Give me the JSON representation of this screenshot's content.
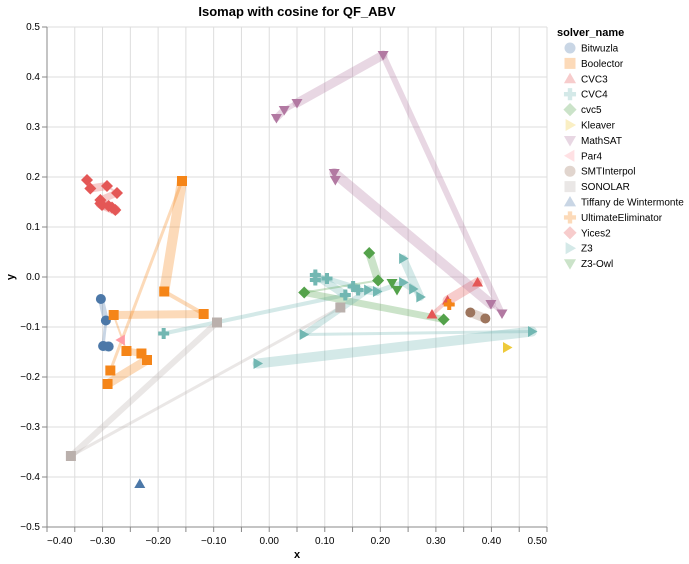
{
  "chart_data": {
    "type": "scatter",
    "title": "Isomap with cosine for QF_ABV",
    "xlabel": "x",
    "ylabel": "y",
    "xlim": [
      -0.4,
      0.5
    ],
    "ylim": [
      -0.5,
      0.5
    ],
    "grid": true,
    "x_ticks": [
      "−0.40",
      "−0.30",
      "−0.20",
      "−0.10",
      "0.00",
      "0.10",
      "0.20",
      "0.30",
      "0.40",
      "0.50"
    ],
    "x_tick_values": [
      -0.4,
      -0.3,
      -0.2,
      -0.1,
      0.0,
      0.1,
      0.2,
      0.3,
      0.4,
      0.5
    ],
    "y_ticks": [
      "0.5",
      "0.4",
      "0.3",
      "0.2",
      "0.1",
      "0.0",
      "−0.1",
      "−0.2",
      "−0.3",
      "−0.4",
      "−0.5"
    ],
    "y_tick_values": [
      0.5,
      0.4,
      0.3,
      0.2,
      0.1,
      0.0,
      -0.1,
      -0.2,
      -0.3,
      -0.4,
      -0.5
    ],
    "legend": {
      "title": "solver_name",
      "placement": "right"
    },
    "series": [
      {
        "name": "Bitwuzla",
        "shape": "circle",
        "color": "#4c78a8",
        "points": [
          [
            -0.303,
            -0.044
          ],
          [
            -0.294,
            -0.087
          ],
          [
            -0.299,
            -0.138
          ],
          [
            -0.289,
            -0.139
          ]
        ]
      },
      {
        "name": "Boolector",
        "shape": "square",
        "color": "#f58518",
        "points": [
          [
            -0.286,
            -0.187
          ],
          [
            -0.157,
            0.192
          ],
          [
            -0.189,
            -0.029
          ],
          [
            -0.118,
            -0.074
          ],
          [
            -0.28,
            -0.076
          ],
          [
            -0.257,
            -0.148
          ],
          [
            -0.23,
            -0.153
          ],
          [
            -0.22,
            -0.166
          ],
          [
            -0.291,
            -0.214
          ]
        ]
      },
      {
        "name": "CVC3",
        "shape": "triangle-up",
        "color": "#e45756",
        "points": [
          [
            0.375,
            -0.011
          ],
          [
            0.321,
            -0.047
          ],
          [
            0.293,
            -0.075
          ]
        ]
      },
      {
        "name": "CVC4",
        "shape": "cross",
        "color": "#72b7b2",
        "points": [
          [
            -0.19,
            -0.113
          ],
          [
            0.137,
            -0.036
          ],
          [
            0.083,
            0.004
          ],
          [
            0.083,
            -0.006
          ],
          [
            0.104,
            -0.003
          ],
          [
            0.151,
            -0.019
          ],
          [
            0.16,
            -0.026
          ]
        ]
      },
      {
        "name": "cvc5",
        "shape": "diamond",
        "color": "#54a24b",
        "points": [
          [
            0.18,
            0.048
          ],
          [
            0.196,
            -0.007
          ],
          [
            0.063,
            -0.031
          ],
          [
            0.314,
            -0.085
          ]
        ]
      },
      {
        "name": "Kleaver",
        "shape": "triangle-right",
        "color": "#eeca3b",
        "points": [
          [
            0.428,
            -0.141
          ]
        ]
      },
      {
        "name": "MathSAT",
        "shape": "triangle-down",
        "color": "#b279a2",
        "points": [
          [
            0.013,
            0.318
          ],
          [
            0.027,
            0.334
          ],
          [
            0.05,
            0.348
          ],
          [
            0.205,
            0.444
          ],
          [
            0.419,
            -0.073
          ],
          [
            0.399,
            -0.054
          ],
          [
            0.117,
            0.208
          ],
          [
            0.119,
            0.194
          ]
        ]
      },
      {
        "name": "Par4",
        "shape": "triangle-left",
        "color": "#ff9da6",
        "points": [
          [
            -0.267,
            -0.126
          ]
        ]
      },
      {
        "name": "SMTInterpol",
        "shape": "circle",
        "color": "#9d755d",
        "points": [
          [
            0.362,
            -0.071
          ],
          [
            0.389,
            -0.083
          ]
        ]
      },
      {
        "name": "SONOLAR",
        "shape": "square",
        "color": "#bab0ac",
        "points": [
          [
            -0.094,
            -0.091
          ],
          [
            -0.357,
            -0.358
          ],
          [
            0.128,
            -0.061
          ]
        ]
      },
      {
        "name": "Tiffany de Wintermonte",
        "shape": "triangle-up",
        "color": "#4c78a8",
        "points": [
          [
            -0.233,
            -0.414
          ]
        ]
      },
      {
        "name": "UltimateEliminator",
        "shape": "cross",
        "color": "#f58518",
        "points": [
          [
            0.324,
            -0.055
          ]
        ]
      },
      {
        "name": "Yices2",
        "shape": "diamond",
        "color": "#e45756",
        "points": [
          [
            -0.328,
            0.194
          ],
          [
            -0.322,
            0.177
          ],
          [
            -0.292,
            0.182
          ],
          [
            -0.274,
            0.168
          ],
          [
            -0.304,
            0.154
          ],
          [
            -0.301,
            0.144
          ],
          [
            -0.289,
            0.142
          ],
          [
            -0.283,
            0.139
          ],
          [
            -0.277,
            0.134
          ],
          [
            -0.304,
            0.147
          ]
        ]
      },
      {
        "name": "Z3",
        "shape": "triangle-right",
        "color": "#72b7b2",
        "points": [
          [
            0.241,
            0.037
          ],
          [
            0.272,
            -0.04
          ],
          [
            0.259,
            -0.024
          ],
          [
            0.241,
            -0.011
          ],
          [
            0.194,
            -0.029
          ],
          [
            0.178,
            -0.026
          ],
          [
            0.062,
            -0.115
          ],
          [
            0.473,
            -0.109
          ],
          [
            -0.021,
            -0.173
          ]
        ]
      },
      {
        "name": "Z3-Owl",
        "shape": "triangle-down",
        "color": "#54a24b",
        "points": [
          [
            0.221,
            -0.012
          ],
          [
            0.23,
            -0.026
          ]
        ]
      }
    ]
  }
}
